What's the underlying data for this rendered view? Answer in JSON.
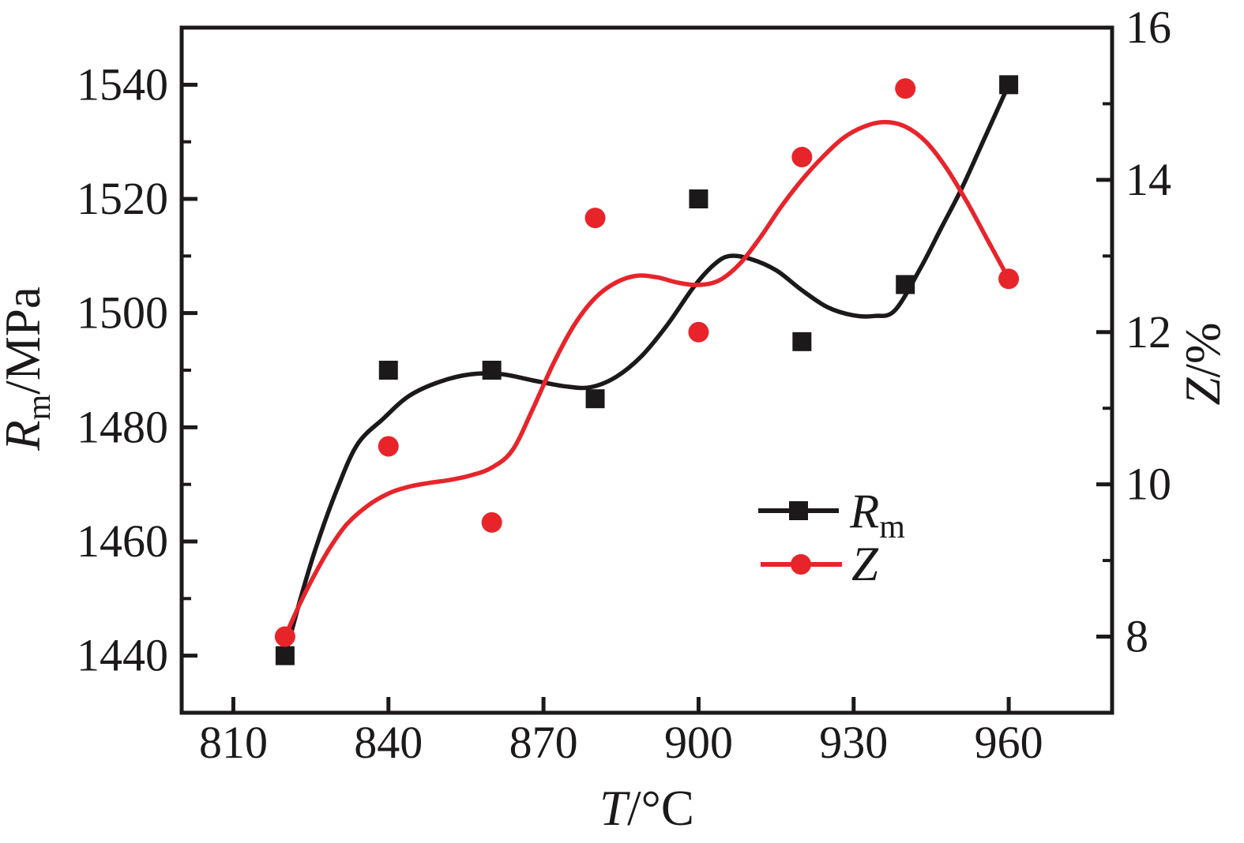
{
  "chart_data": {
    "type": "scatter",
    "title": "",
    "grid": false,
    "x": [
      820,
      840,
      860,
      880,
      900,
      920,
      940,
      960
    ],
    "series": [
      {
        "name": "Rm",
        "axis": "left",
        "marker": "square",
        "color": "#1c191a",
        "values": [
          1440,
          1490,
          1490,
          1485,
          1520,
          1495,
          1505,
          1540
        ]
      },
      {
        "name": "Z",
        "axis": "right",
        "marker": "circle",
        "color": "#e8242b",
        "values": [
          8.0,
          10.5,
          9.5,
          13.5,
          12.0,
          14.3,
          15.2,
          12.7
        ]
      }
    ],
    "smooth_curves": [
      {
        "series": "Rm",
        "axis": "left",
        "color": "#1c191a",
        "points": [
          [
            820,
            1440
          ],
          [
            823,
            1450
          ],
          [
            826,
            1459
          ],
          [
            830,
            1469
          ],
          [
            834,
            1477
          ],
          [
            839,
            1481.5
          ],
          [
            844,
            1485.5
          ],
          [
            850,
            1488
          ],
          [
            856,
            1489.3
          ],
          [
            862,
            1489.3
          ],
          [
            868,
            1488.2
          ],
          [
            874,
            1487.2
          ],
          [
            879,
            1487
          ],
          [
            884,
            1488.8
          ],
          [
            889,
            1492.5
          ],
          [
            894,
            1498
          ],
          [
            899,
            1504.5
          ],
          [
            903,
            1508.5
          ],
          [
            906,
            1510
          ],
          [
            910,
            1509.5
          ],
          [
            915,
            1507.5
          ],
          [
            920,
            1504
          ],
          [
            925,
            1501
          ],
          [
            930,
            1499.6
          ],
          [
            934,
            1499.5
          ],
          [
            938,
            1500.5
          ],
          [
            943,
            1508
          ],
          [
            947,
            1515
          ],
          [
            951,
            1522
          ],
          [
            955,
            1530
          ],
          [
            960,
            1540
          ]
        ]
      },
      {
        "series": "Z",
        "axis": "right",
        "color": "#e8242b",
        "points": [
          [
            820,
            8.0
          ],
          [
            823,
            8.45
          ],
          [
            826,
            8.85
          ],
          [
            829,
            9.2
          ],
          [
            832,
            9.48
          ],
          [
            836,
            9.72
          ],
          [
            840,
            9.88
          ],
          [
            844,
            9.97
          ],
          [
            848,
            10.02
          ],
          [
            852,
            10.06
          ],
          [
            856,
            10.12
          ],
          [
            860,
            10.22
          ],
          [
            864,
            10.45
          ],
          [
            868,
            11.0
          ],
          [
            872,
            11.6
          ],
          [
            876,
            12.1
          ],
          [
            880,
            12.45
          ],
          [
            884,
            12.65
          ],
          [
            888,
            12.74
          ],
          [
            892,
            12.72
          ],
          [
            896,
            12.65
          ],
          [
            900,
            12.62
          ],
          [
            904,
            12.68
          ],
          [
            908,
            12.9
          ],
          [
            912,
            13.25
          ],
          [
            916,
            13.65
          ],
          [
            920,
            14.0
          ],
          [
            924,
            14.3
          ],
          [
            928,
            14.55
          ],
          [
            932,
            14.7
          ],
          [
            936,
            14.76
          ],
          [
            940,
            14.7
          ],
          [
            944,
            14.5
          ],
          [
            948,
            14.15
          ],
          [
            952,
            13.7
          ],
          [
            956,
            13.2
          ],
          [
            960,
            12.7
          ]
        ]
      }
    ],
    "x_axis": {
      "label": "T/°C",
      "label_italic": "T",
      "label_rest": "/°C",
      "range": [
        800,
        980
      ],
      "ticks": [
        "810",
        "840",
        "870",
        "900",
        "930",
        "960"
      ],
      "tick_values": [
        810,
        840,
        870,
        900,
        930,
        960
      ]
    },
    "left_axis": {
      "label": "Rm/MPa",
      "label_italic": "R",
      "label_sub": "m",
      "label_rest": "/MPa",
      "range": [
        1430,
        1550
      ],
      "ticks": [
        "1440",
        "1460",
        "1480",
        "1500",
        "1520",
        "1540"
      ],
      "tick_values": [
        1440,
        1460,
        1480,
        1500,
        1520,
        1540
      ],
      "minor_tick_values": [
        1450,
        1470,
        1490,
        1510,
        1530
      ]
    },
    "right_axis": {
      "label": "Z/%",
      "label_italic": "Z",
      "label_rest": "/%",
      "range": [
        7,
        16
      ],
      "ticks": [
        "8",
        "10",
        "12",
        "14",
        "16"
      ],
      "tick_values": [
        8,
        10,
        12,
        14,
        16
      ],
      "minor_tick_values": [
        9,
        11,
        13,
        15
      ]
    },
    "legend": {
      "position": "inside-right-lower",
      "entries": [
        {
          "label": "Rm",
          "label_main": "R",
          "label_sub": "m",
          "marker": "square",
          "color": "#1c191a"
        },
        {
          "label": "Z",
          "label_main": "Z",
          "label_sub": "",
          "marker": "circle",
          "color": "#e8242b"
        }
      ]
    }
  }
}
